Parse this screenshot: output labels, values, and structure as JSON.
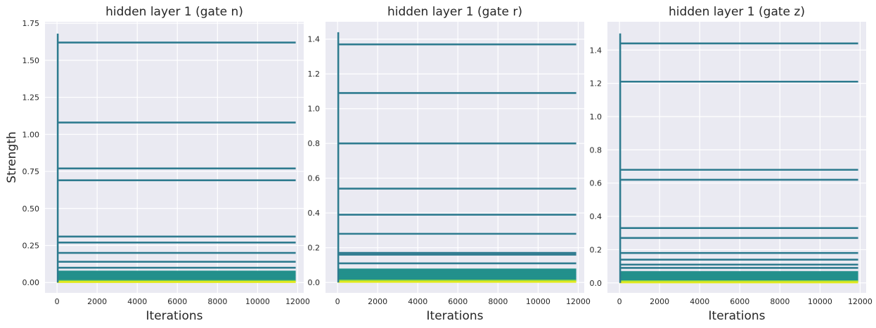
{
  "colors": {
    "panel_bg": "#eaeaf2",
    "grid": "#ffffff",
    "top_line": "#2e7b8f",
    "dense_band": "#21918c",
    "green_band": "#7ad151",
    "yellow_band": "#e0e81e"
  },
  "chart_data": [
    {
      "type": "line",
      "title": "hidden layer 1 (gate n)",
      "xlabel": "Iterations",
      "ylabel": "Strength",
      "xlim": [
        -600,
        12300
      ],
      "ylim": [
        -0.07,
        1.76
      ],
      "xticks": [
        0,
        2000,
        4000,
        6000,
        8000,
        10000,
        12000
      ],
      "xtick_labels": [
        "0",
        "2000",
        "4000",
        "6000",
        "8000",
        "10000",
        "12000"
      ],
      "yticks": [
        0.0,
        0.25,
        0.5,
        0.75,
        1.0,
        1.25,
        1.5,
        1.75
      ],
      "ytick_labels": [
        "0.00",
        "0.25",
        "0.50",
        "0.75",
        "1.00",
        "1.25",
        "1.50",
        "1.75"
      ],
      "grid": true,
      "x_end": 11900,
      "spike_max": 1.68,
      "series": [
        {
          "values": [
            1.62
          ],
          "color": "#2e7b8f"
        },
        {
          "values": [
            1.08
          ],
          "color": "#2e7b8f"
        },
        {
          "values": [
            0.77
          ],
          "color": "#2e7b8f"
        },
        {
          "values": [
            0.69
          ],
          "color": "#2e7b8f"
        },
        {
          "values": [
            0.31
          ],
          "color": "#2e7b8f"
        },
        {
          "values": [
            0.27
          ],
          "color": "#2e7b8f"
        },
        {
          "values": [
            0.2
          ],
          "color": "#2e7b8f"
        },
        {
          "values": [
            0.14
          ],
          "color": "#2e7b8f"
        },
        {
          "values": [
            0.1
          ],
          "color": "#2e7b8f"
        }
      ],
      "band": {
        "top": 0.08,
        "bottom": 0.01,
        "color": "#21918c"
      },
      "bottom_lines": [
        0.012,
        0.006,
        0.002
      ]
    },
    {
      "type": "line",
      "title": "hidden layer 1 (gate r)",
      "xlabel": "Iterations",
      "ylabel": "",
      "xlim": [
        -600,
        12300
      ],
      "ylim": [
        -0.06,
        1.5
      ],
      "xticks": [
        0,
        2000,
        4000,
        6000,
        8000,
        10000,
        12000
      ],
      "xtick_labels": [
        "0",
        "2000",
        "4000",
        "6000",
        "8000",
        "10000",
        "12000"
      ],
      "yticks": [
        0.0,
        0.2,
        0.4,
        0.6,
        0.8,
        1.0,
        1.2,
        1.4
      ],
      "ytick_labels": [
        "0.0",
        "0.2",
        "0.4",
        "0.6",
        "0.8",
        "1.0",
        "1.2",
        "1.4"
      ],
      "grid": true,
      "x_end": 11900,
      "spike_max": 1.44,
      "series": [
        {
          "values": [
            1.37
          ],
          "color": "#2e7b8f"
        },
        {
          "values": [
            1.09
          ],
          "color": "#2e7b8f"
        },
        {
          "values": [
            0.8
          ],
          "color": "#2e7b8f"
        },
        {
          "values": [
            0.54
          ],
          "color": "#2e7b8f"
        },
        {
          "values": [
            0.39
          ],
          "color": "#2e7b8f"
        },
        {
          "values": [
            0.28
          ],
          "color": "#2e7b8f"
        },
        {
          "values": [
            0.17
          ],
          "color": "#2e7b8f"
        },
        {
          "values": [
            0.16
          ],
          "color": "#2e7b8f"
        },
        {
          "values": [
            0.11
          ],
          "color": "#2e7b8f"
        }
      ],
      "band": {
        "top": 0.08,
        "bottom": 0.01,
        "color": "#21918c"
      },
      "bottom_lines": [
        0.012,
        0.006,
        0.002
      ]
    },
    {
      "type": "line",
      "title": "hidden layer 1 (gate z)",
      "xlabel": "Iterations",
      "ylabel": "",
      "xlim": [
        -600,
        12300
      ],
      "ylim": [
        -0.06,
        1.57
      ],
      "xticks": [
        0,
        2000,
        4000,
        6000,
        8000,
        10000,
        12000
      ],
      "xtick_labels": [
        "0",
        "2000",
        "4000",
        "6000",
        "8000",
        "10000",
        "12000"
      ],
      "yticks": [
        0.0,
        0.2,
        0.4,
        0.6,
        0.8,
        1.0,
        1.2,
        1.4
      ],
      "ytick_labels": [
        "0.0",
        "0.2",
        "0.4",
        "0.6",
        "0.8",
        "1.0",
        "1.2",
        "1.4"
      ],
      "grid": true,
      "x_end": 11900,
      "spike_max": 1.5,
      "series": [
        {
          "values": [
            1.44
          ],
          "color": "#2e7b8f"
        },
        {
          "values": [
            1.21
          ],
          "color": "#2e7b8f"
        },
        {
          "values": [
            0.68
          ],
          "color": "#2e7b8f"
        },
        {
          "values": [
            0.62
          ],
          "color": "#2e7b8f"
        },
        {
          "values": [
            0.33
          ],
          "color": "#2e7b8f"
        },
        {
          "values": [
            0.27
          ],
          "color": "#2e7b8f"
        },
        {
          "values": [
            0.18
          ],
          "color": "#2e7b8f"
        },
        {
          "values": [
            0.14
          ],
          "color": "#2e7b8f"
        },
        {
          "values": [
            0.11
          ],
          "color": "#2e7b8f"
        },
        {
          "values": [
            0.09
          ],
          "color": "#2e7b8f"
        }
      ],
      "band": {
        "top": 0.07,
        "bottom": 0.01,
        "color": "#21918c"
      },
      "bottom_lines": [
        0.012,
        0.006,
        0.002
      ]
    }
  ]
}
